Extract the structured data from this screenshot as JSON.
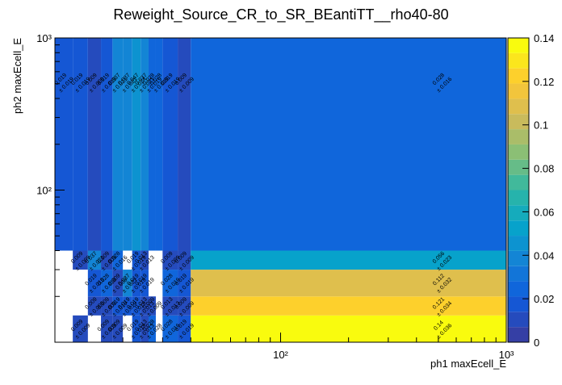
{
  "chart_data": {
    "type": "heatmap",
    "title": "Reweight_Source_CR_to_SR_BEantiTT__rho40-80",
    "x_label": "ph1 maxEcell_E",
    "y_label": "ph2 maxEcell_E",
    "x_edges": [
      10,
      12,
      14,
      16,
      18,
      20,
      22,
      24,
      26,
      28,
      30,
      35,
      40,
      1000
    ],
    "y_edges": [
      10,
      15,
      20,
      30,
      40,
      1000
    ],
    "xlim": [
      10,
      1000
    ],
    "ylim": [
      10,
      1000
    ],
    "xticks": [
      {
        "value": 100,
        "label": "10²"
      },
      {
        "value": 1000,
        "label": "10³"
      }
    ],
    "yticks": [
      {
        "value": 100,
        "label": "10²"
      },
      {
        "value": 1000,
        "label": "10³"
      }
    ],
    "log_x": true,
    "log_y": true,
    "zlim": [
      0,
      0.14
    ],
    "zticks": [
      0,
      0.02,
      0.04,
      0.06,
      0.08,
      0.1,
      0.12,
      0.14
    ],
    "contours": 20,
    "colormap": [
      "#353fa5",
      "#0f5cdd",
      "#1481d6",
      "#06a4ca",
      "#2eb7a4",
      "#87bf77",
      "#d1bb59",
      "#fec832",
      "#f9fb0e"
    ],
    "z": [
      [
        null,
        0.009,
        null,
        0.009,
        0.009,
        null,
        0.019,
        0.013,
        0.028,
        null,
        0.028,
        0.019,
        0.14
      ],
      [
        null,
        null,
        0.009,
        0.009,
        0.019,
        0.019,
        0.019,
        0.013,
        0.009,
        null,
        0.013,
        0.009,
        0.121
      ],
      [
        null,
        null,
        0.019,
        0.028,
        0.009,
        0.037,
        0.019,
        0.019,
        null,
        null,
        0.028,
        0.019,
        0.112
      ],
      [
        null,
        0.009,
        0.037,
        0.009,
        0.028,
        null,
        0.019,
        0.013,
        null,
        null,
        0.009,
        0.009,
        0.056
      ],
      [
        0.019,
        0.019,
        0.009,
        0.019,
        0.037,
        0.037,
        0.047,
        0.037,
        0.028,
        0.028,
        0.019,
        0.009,
        0.028
      ]
    ],
    "error_labels": [
      [
        null,
        "± 0.009",
        null,
        "± 0.009",
        "± 0.009",
        null,
        "± 0.019",
        "± 0.013",
        "± 0.028",
        null,
        "± 0.016",
        "± 0.019",
        "± 0.036"
      ],
      [
        null,
        null,
        "± 0.009",
        "± 0.009",
        "± 0.019",
        "± 0.019",
        "± 0.019",
        "± 0.013",
        "± 0.009",
        null,
        "± 0.013",
        "± 0.009",
        "± 0.034"
      ],
      [
        null,
        null,
        "± 0.019",
        "± 0.016",
        "± 0.009",
        "± 0.021",
        "± 0.019",
        "± 0.019",
        null,
        null,
        "± 0.016",
        "± 0.019",
        "± 0.032"
      ],
      [
        null,
        "± 0.009",
        "± 0.021",
        "± 0.009",
        "± 0.016",
        null,
        "± 0.019",
        "± 0.013",
        null,
        null,
        "± 0.009",
        "± 0.009",
        "± 0.023"
      ],
      [
        "± 0.019",
        "± 0.019",
        "± 0.009",
        "± 0.019",
        "± 0.021",
        "± 0.021",
        "± 0.024",
        "± 0.021",
        "± 0.019",
        "± 0.019",
        "± 0.019",
        "± 0.009",
        "± 0.016"
      ]
    ]
  }
}
